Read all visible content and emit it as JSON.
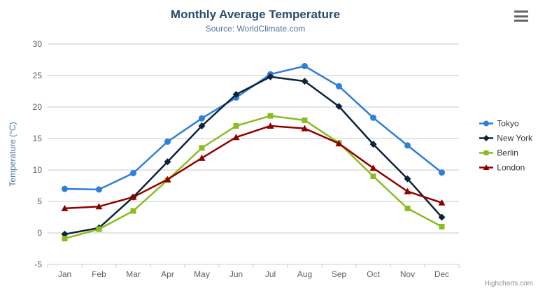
{
  "header": {
    "title": "Monthly Average Temperature",
    "subtitle": "Source: WorldClimate.com"
  },
  "credits": {
    "text": "Highcharts.com"
  },
  "chart_data": {
    "type": "line",
    "title": "Monthly Average Temperature",
    "subtitle": "Source: WorldClimate.com",
    "categories": [
      "Jan",
      "Feb",
      "Mar",
      "Apr",
      "May",
      "Jun",
      "Jul",
      "Aug",
      "Sep",
      "Oct",
      "Nov",
      "Dec"
    ],
    "xlabel": "",
    "ylabel": "Temperature (°C)",
    "ylim": [
      -5,
      30
    ],
    "yticks": [
      -5,
      0,
      5,
      10,
      15,
      20,
      25,
      30
    ],
    "grid": true,
    "legend_position": "right",
    "series": [
      {
        "name": "Tokyo",
        "color": "#2f7ed8",
        "marker": "circle",
        "values": [
          7.0,
          6.9,
          9.5,
          14.5,
          18.2,
          21.5,
          25.2,
          26.5,
          23.3,
          18.3,
          13.9,
          9.6
        ]
      },
      {
        "name": "New York",
        "color": "#0d233a",
        "marker": "diamond",
        "values": [
          -0.2,
          0.8,
          5.7,
          11.3,
          17.0,
          22.0,
          24.8,
          24.1,
          20.1,
          14.1,
          8.6,
          2.5
        ]
      },
      {
        "name": "Berlin",
        "color": "#8bbc21",
        "marker": "square",
        "values": [
          -0.9,
          0.6,
          3.5,
          8.4,
          13.5,
          17.0,
          18.6,
          17.9,
          14.3,
          9.0,
          3.9,
          1.0
        ]
      },
      {
        "name": "London",
        "color": "#910000",
        "marker": "triangle",
        "values": [
          3.9,
          4.2,
          5.7,
          8.5,
          11.9,
          15.2,
          17.0,
          16.6,
          14.2,
          10.3,
          6.6,
          4.8
        ]
      }
    ],
    "colors": {
      "grid": "#c8c8c8",
      "axis_line": "#c0d0e0",
      "tick": "#c0d0e0",
      "axis_labels": "#606060",
      "axis_title": "#4d759e",
      "title": "#274b6d",
      "subtitle": "#4d759e",
      "legend_text": "#333333",
      "credits": "#909090"
    }
  }
}
